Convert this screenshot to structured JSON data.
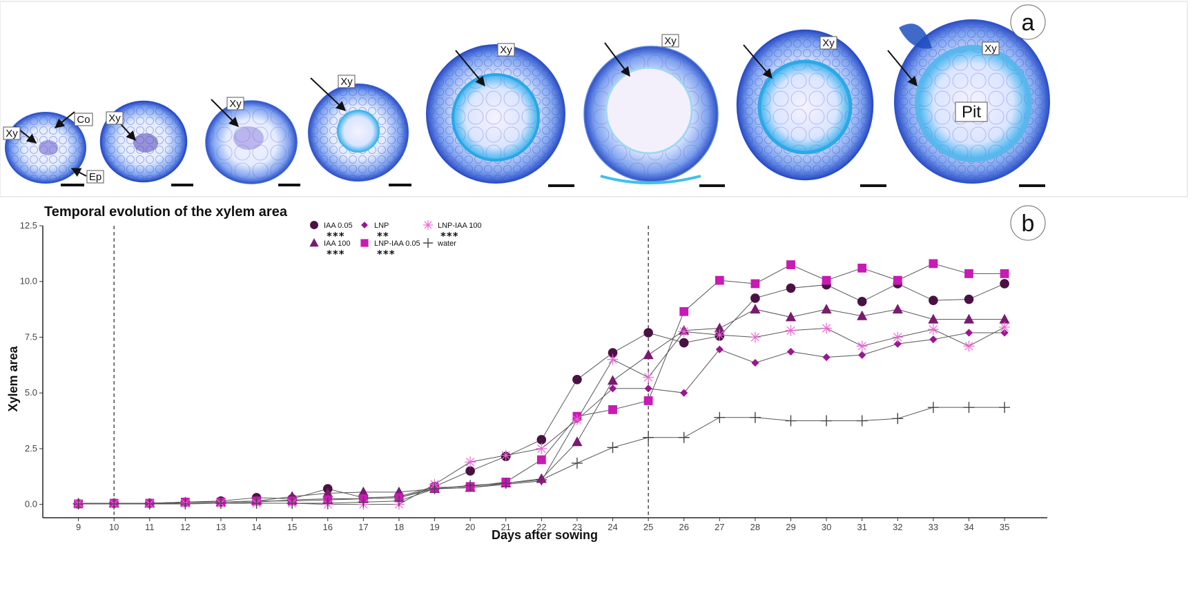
{
  "panel_a": {
    "letter": "a",
    "section_labels": {
      "xylem": "Xy",
      "cortex": "Co",
      "epidermis": "Ep",
      "pith": "Pit"
    }
  },
  "panel_b": {
    "letter": "b"
  },
  "colors": {
    "IAA 0.05": "#4a1242",
    "IAA 100": "#7a1a70",
    "LNP": "#9c1592",
    "LNP-IAA 0.05": "#c81ab4",
    "LNP-IAA 100": "#ee66d6",
    "water": "#444444"
  },
  "chart_data": {
    "type": "line",
    "title": "Temporal evolution of the xylem area",
    "xlabel": "Days after sowing",
    "ylabel": "Xylem area",
    "x": [
      9,
      10,
      11,
      12,
      13,
      14,
      15,
      16,
      17,
      18,
      19,
      20,
      21,
      22,
      23,
      24,
      25,
      26,
      27,
      28,
      29,
      30,
      31,
      32,
      33,
      34,
      35
    ],
    "xlim": [
      8,
      36.2
    ],
    "ylim": [
      -0.6,
      12.5
    ],
    "yticks": [
      0.0,
      2.5,
      5.0,
      7.5,
      10.0,
      12.5
    ],
    "ytick_labels": [
      "0.0",
      "2.5",
      "5.0",
      "7.5",
      "10.0",
      "12.5"
    ],
    "vlines": [
      10,
      25
    ],
    "series": [
      {
        "name": "IAA 0.05",
        "marker": "circle",
        "stars": "***",
        "values": [
          0.02,
          0.05,
          0.05,
          0.1,
          0.15,
          0.3,
          0.25,
          0.7,
          0.3,
          0.35,
          0.8,
          1.5,
          2.15,
          2.9,
          5.6,
          6.8,
          7.7,
          7.25,
          7.55,
          9.25,
          9.7,
          9.85,
          9.1,
          9.9,
          9.15,
          9.2,
          9.9
        ]
      },
      {
        "name": "IAA 100",
        "marker": "triangle",
        "stars": "***",
        "values": [
          0.05,
          0.05,
          0.05,
          0.1,
          0.1,
          0.15,
          0.35,
          0.5,
          0.55,
          0.55,
          0.7,
          0.75,
          0.95,
          1.15,
          2.8,
          5.55,
          6.7,
          7.8,
          7.9,
          8.75,
          8.4,
          8.75,
          8.45,
          8.75,
          8.3,
          8.3,
          8.3
        ]
      },
      {
        "name": "LNP",
        "marker": "diamond",
        "stars": "**",
        "values": [
          0.05,
          0.05,
          0.05,
          0.05,
          0.05,
          0.1,
          0.2,
          0.25,
          0.25,
          0.3,
          0.7,
          0.75,
          0.9,
          1.05,
          3.8,
          5.2,
          5.2,
          5.0,
          6.95,
          6.35,
          6.85,
          6.6,
          6.7,
          7.2,
          7.4,
          7.7,
          7.7
        ]
      },
      {
        "name": "LNP-IAA 0.05",
        "marker": "square",
        "stars": "***",
        "values": [
          0.02,
          0.05,
          0.05,
          0.1,
          0.1,
          0.15,
          0.15,
          0.2,
          0.25,
          0.3,
          0.75,
          0.8,
          1.0,
          2.0,
          3.95,
          4.25,
          4.65,
          8.65,
          10.05,
          9.9,
          10.75,
          10.05,
          10.6,
          10.05,
          10.8,
          10.35,
          10.35
        ]
      },
      {
        "name": "LNP-IAA 100",
        "marker": "asterisk",
        "stars": "***",
        "values": [
          0.05,
          0.02,
          0.02,
          0.05,
          0.05,
          0.05,
          0.05,
          0.0,
          0.0,
          0.0,
          0.9,
          1.9,
          2.2,
          2.5,
          3.8,
          6.5,
          5.7,
          7.75,
          7.6,
          7.5,
          7.8,
          7.9,
          7.1,
          7.5,
          7.85,
          7.1,
          7.95
        ]
      },
      {
        "name": "water",
        "marker": "plus",
        "stars": "",
        "values": [
          0.02,
          0.02,
          0.02,
          0.02,
          0.05,
          0.05,
          0.05,
          0.05,
          0.1,
          0.15,
          0.7,
          0.85,
          0.95,
          1.1,
          1.85,
          2.55,
          3.0,
          3.0,
          3.9,
          3.9,
          3.75,
          3.75,
          3.75,
          3.85,
          4.35,
          4.35,
          4.35
        ]
      }
    ]
  }
}
